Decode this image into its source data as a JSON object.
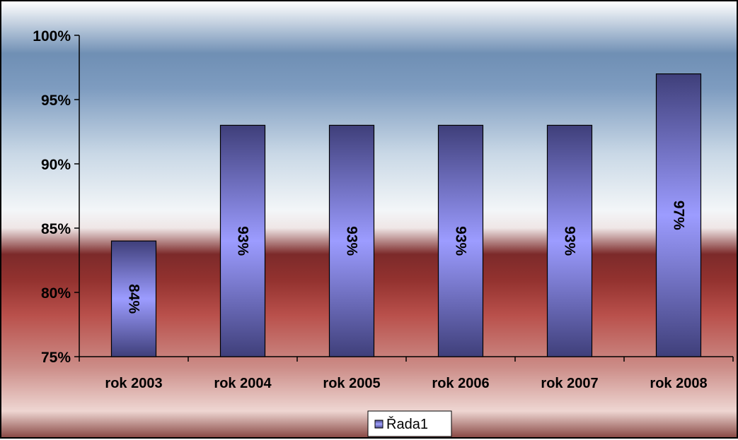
{
  "chart_data": {
    "type": "bar",
    "categories": [
      "rok 2003",
      "rok 2004",
      "rok 2005",
      "rok 2006",
      "rok 2007",
      "rok 2008"
    ],
    "series": [
      {
        "name": "Řada1",
        "values": [
          84,
          93,
          93,
          93,
          93,
          97
        ]
      }
    ],
    "data_labels": [
      "84%",
      "93%",
      "93%",
      "93%",
      "93%",
      "97%"
    ],
    "y_ticks": [
      {
        "value": 75,
        "label": "75%"
      },
      {
        "value": 80,
        "label": "80%"
      },
      {
        "value": 85,
        "label": "85%"
      },
      {
        "value": 90,
        "label": "90%"
      },
      {
        "value": 95,
        "label": "95%"
      },
      {
        "value": 100,
        "label": "100%"
      }
    ],
    "ylim": [
      75,
      100
    ],
    "grid": false,
    "legend": {
      "position": "bottom",
      "label": "Řada1"
    },
    "colors": {
      "bar_light": "#9c9cff",
      "bar_dark": "#3f3f7a",
      "axis": "#000000"
    }
  }
}
